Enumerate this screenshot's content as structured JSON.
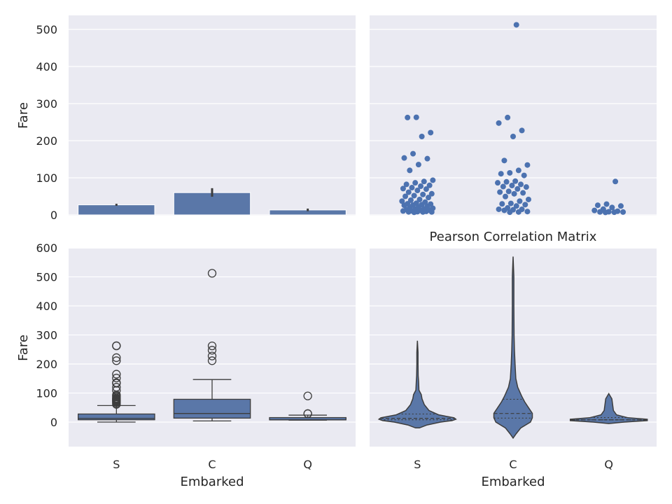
{
  "colors": {
    "accent": "#4c72b0",
    "fill": "#5a77a8",
    "line": "#3d3d3d",
    "panel": "#eaeaf2"
  },
  "chart_data": [
    {
      "type": "bar",
      "title": "",
      "xlabel": "",
      "ylabel": "Fare",
      "categories": [
        "S",
        "C",
        "Q"
      ],
      "values": [
        27.1,
        60.0,
        13.3
      ],
      "ci": [
        [
          24.5,
          30.0
        ],
        [
          49.0,
          72.0
        ],
        [
          10.0,
          17.0
        ]
      ],
      "yticks": [
        "0",
        "100",
        "200",
        "300",
        "400",
        "500"
      ],
      "ylim": [
        0,
        540
      ],
      "show_xticks": false
    },
    {
      "type": "scatter",
      "title": "",
      "xlabel": "",
      "ylabel": "",
      "categories": [
        "S",
        "C",
        "Q"
      ],
      "points": [
        [
          7,
          7.9,
          8,
          8.05,
          8.7,
          9.5,
          10.5,
          11.1,
          12.5,
          13,
          14.5,
          15.5,
          16.1,
          18,
          19.5,
          21,
          23,
          26,
          26.5,
          27.7,
          29,
          30,
          31.4,
          34.4,
          37,
          39.7,
          41.6,
          46.9,
          50,
          52,
          55,
          57,
          61.2,
          66,
          69.5,
          71,
          73.5,
          77.3,
          79.6,
          82.2,
          86.5,
          90,
          93.5,
          120,
          135.6,
          151.6,
          153.5,
          164.9,
          211.3,
          221.8,
          262.4,
          263
        ],
        [
          7.2,
          7.9,
          9,
          12.3,
          13.8,
          15,
          15.2,
          18.8,
          24,
          27.7,
          29.7,
          31,
          37,
          41.6,
          49.5,
          56.9,
          59.4,
          61.4,
          63.4,
          70,
          75.2,
          76.3,
          79.2,
          82.2,
          86.5,
          89.1,
          91,
          106.4,
          110.9,
          113.3,
          120,
          134.5,
          146.5,
          211.3,
          227.5,
          247.5,
          262.4,
          512.3
        ],
        [
          6.8,
          7.2,
          7.75,
          8,
          8.5,
          10,
          12,
          15.5,
          20,
          24,
          26,
          29.1,
          90
        ]
      ],
      "yticks": [],
      "ylim": [
        0,
        540
      ],
      "show_xticks": false
    },
    {
      "type": "box",
      "title": "",
      "xlabel": "Embarked",
      "ylabel": "Fare",
      "categories": [
        "S",
        "C",
        "Q"
      ],
      "stats": [
        {
          "min": 0,
          "q1": 8.05,
          "median": 13,
          "q3": 27.9,
          "max": 56.9
        },
        {
          "min": 4.0,
          "q1": 13.7,
          "median": 29.7,
          "q3": 78.5,
          "max": 146.5
        },
        {
          "min": 6.75,
          "q1": 7.75,
          "median": 7.75,
          "q3": 15.5,
          "max": 24
        }
      ],
      "outliers": [
        [
          61,
          65,
          69,
          71,
          73.5,
          76,
          77.3,
          79.6,
          80,
          82.2,
          86.5,
          90,
          93.5,
          108.9,
          120,
          133.65,
          135.6,
          151.6,
          164.9,
          211.3,
          221.8,
          262.4,
          263
        ],
        [
          211.3,
          227.5,
          247.5,
          262.4,
          512.3
        ],
        [
          29.1,
          29.125,
          90
        ]
      ],
      "yticks": [
        "0",
        "100",
        "200",
        "300",
        "400",
        "500",
        "600"
      ],
      "ylim": [
        -80,
        600
      ],
      "show_xticks": true
    },
    {
      "type": "violin",
      "title": "Pearson Correlation Matrix",
      "xlabel": "Embarked",
      "ylabel": "",
      "categories": [
        "S",
        "C",
        "Q"
      ],
      "range": [
        [
          -20,
          280
        ],
        [
          -55,
          570
        ],
        [
          -5,
          98
        ]
      ],
      "quartiles": [
        [
          8.05,
          13,
          27.9
        ],
        [
          13.7,
          29.7,
          78.5
        ],
        [
          7.75,
          7.75,
          15.5
        ]
      ],
      "profiles": [
        [
          [
            -20,
            0.05
          ],
          [
            -10,
            0.25
          ],
          [
            0,
            0.6
          ],
          [
            5,
            0.9
          ],
          [
            10,
            1.0
          ],
          [
            15,
            0.95
          ],
          [
            25,
            0.55
          ],
          [
            40,
            0.3
          ],
          [
            60,
            0.18
          ],
          [
            80,
            0.12
          ],
          [
            95,
            0.1
          ],
          [
            110,
            0.04
          ],
          [
            140,
            0.03
          ],
          [
            160,
            0.02
          ],
          [
            200,
            0.015
          ],
          [
            240,
            0.015
          ],
          [
            280,
            0.0
          ]
        ],
        [
          [
            -55,
            0.0
          ],
          [
            -40,
            0.08
          ],
          [
            -20,
            0.2
          ],
          [
            0,
            0.45
          ],
          [
            15,
            0.5
          ],
          [
            30,
            0.5
          ],
          [
            50,
            0.4
          ],
          [
            70,
            0.3
          ],
          [
            90,
            0.22
          ],
          [
            120,
            0.12
          ],
          [
            150,
            0.07
          ],
          [
            200,
            0.05
          ],
          [
            250,
            0.035
          ],
          [
            300,
            0.025
          ],
          [
            400,
            0.02
          ],
          [
            500,
            0.02
          ],
          [
            570,
            0.0
          ]
        ],
        [
          [
            -5,
            0.0
          ],
          [
            0,
            0.4
          ],
          [
            5,
            1.0
          ],
          [
            10,
            1.0
          ],
          [
            15,
            0.5
          ],
          [
            25,
            0.2
          ],
          [
            40,
            0.12
          ],
          [
            60,
            0.1
          ],
          [
            80,
            0.08
          ],
          [
            98,
            0.0
          ]
        ]
      ],
      "yticks": [],
      "ylim": [
        -80,
        600
      ],
      "show_xticks": true
    }
  ]
}
